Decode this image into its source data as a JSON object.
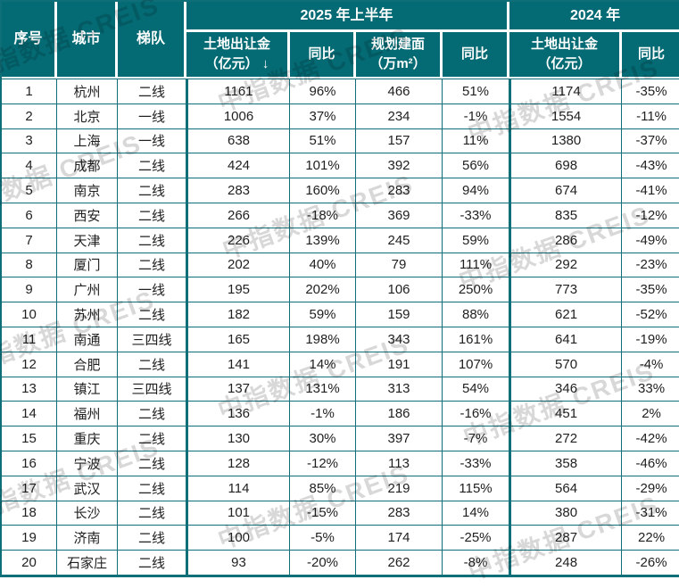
{
  "colors": {
    "header_bg": "#046a73",
    "border": "#0f6f78",
    "body_text": "#212121",
    "header_text": "#ffffff",
    "watermark": "#d8d8d8"
  },
  "watermark_text": "中指数据 CREIS",
  "chart_data": {
    "type": "table",
    "header_groups": {
      "h2025": "2025 年上半年",
      "h2024": "2024 年"
    },
    "columns": {
      "seq": "序号",
      "city": "城市",
      "tier": "梯队",
      "land2025": [
        "土地出让金",
        "（亿元）"
      ],
      "sort_icon": "↓",
      "yoy_land2025": "同比",
      "area2025": [
        "规划建面",
        "（万m²）"
      ],
      "yoy_area2025": "同比",
      "land2024": [
        "土地出让金",
        "（亿元）"
      ],
      "yoy_land2024": "同比"
    },
    "rows": [
      {
        "seq": "1",
        "city": "杭州",
        "tier": "二线",
        "land2025": "1161",
        "yoy_land2025": "96%",
        "area2025": "466",
        "yoy_area2025": "51%",
        "land2024": "1174",
        "yoy_land2024": "-35%"
      },
      {
        "seq": "2",
        "city": "北京",
        "tier": "一线",
        "land2025": "1006",
        "yoy_land2025": "37%",
        "area2025": "234",
        "yoy_area2025": "-1%",
        "land2024": "1554",
        "yoy_land2024": "-11%"
      },
      {
        "seq": "3",
        "city": "上海",
        "tier": "一线",
        "land2025": "638",
        "yoy_land2025": "51%",
        "area2025": "157",
        "yoy_area2025": "11%",
        "land2024": "1380",
        "yoy_land2024": "-37%"
      },
      {
        "seq": "4",
        "city": "成都",
        "tier": "二线",
        "land2025": "424",
        "yoy_land2025": "101%",
        "area2025": "392",
        "yoy_area2025": "56%",
        "land2024": "698",
        "yoy_land2024": "-43%"
      },
      {
        "seq": "5",
        "city": "南京",
        "tier": "二线",
        "land2025": "283",
        "yoy_land2025": "160%",
        "area2025": "283",
        "yoy_area2025": "94%",
        "land2024": "674",
        "yoy_land2024": "-41%"
      },
      {
        "seq": "6",
        "city": "西安",
        "tier": "二线",
        "land2025": "266",
        "yoy_land2025": "-18%",
        "area2025": "369",
        "yoy_area2025": "-33%",
        "land2024": "835",
        "yoy_land2024": "-12%"
      },
      {
        "seq": "7",
        "city": "天津",
        "tier": "二线",
        "land2025": "226",
        "yoy_land2025": "139%",
        "area2025": "245",
        "yoy_area2025": "59%",
        "land2024": "286",
        "yoy_land2024": "-49%"
      },
      {
        "seq": "8",
        "city": "厦门",
        "tier": "二线",
        "land2025": "202",
        "yoy_land2025": "40%",
        "area2025": "79",
        "yoy_area2025": "111%",
        "land2024": "292",
        "yoy_land2024": "-23%"
      },
      {
        "seq": "9",
        "city": "广州",
        "tier": "一线",
        "land2025": "195",
        "yoy_land2025": "202%",
        "area2025": "106",
        "yoy_area2025": "250%",
        "land2024": "773",
        "yoy_land2024": "-35%"
      },
      {
        "seq": "10",
        "city": "苏州",
        "tier": "二线",
        "land2025": "182",
        "yoy_land2025": "59%",
        "area2025": "159",
        "yoy_area2025": "88%",
        "land2024": "621",
        "yoy_land2024": "-52%"
      },
      {
        "seq": "11",
        "city": "南通",
        "tier": "三四线",
        "land2025": "165",
        "yoy_land2025": "198%",
        "area2025": "343",
        "yoy_area2025": "161%",
        "land2024": "641",
        "yoy_land2024": "-19%"
      },
      {
        "seq": "12",
        "city": "合肥",
        "tier": "二线",
        "land2025": "141",
        "yoy_land2025": "14%",
        "area2025": "191",
        "yoy_area2025": "107%",
        "land2024": "570",
        "yoy_land2024": "-4%"
      },
      {
        "seq": "13",
        "city": "镇江",
        "tier": "三四线",
        "land2025": "137",
        "yoy_land2025": "131%",
        "area2025": "313",
        "yoy_area2025": "54%",
        "land2024": "346",
        "yoy_land2024": "33%"
      },
      {
        "seq": "14",
        "city": "福州",
        "tier": "二线",
        "land2025": "136",
        "yoy_land2025": "-1%",
        "area2025": "186",
        "yoy_area2025": "-16%",
        "land2024": "451",
        "yoy_land2024": "2%"
      },
      {
        "seq": "15",
        "city": "重庆",
        "tier": "二线",
        "land2025": "130",
        "yoy_land2025": "30%",
        "area2025": "397",
        "yoy_area2025": "-7%",
        "land2024": "272",
        "yoy_land2024": "-42%"
      },
      {
        "seq": "16",
        "city": "宁波",
        "tier": "二线",
        "land2025": "128",
        "yoy_land2025": "-12%",
        "area2025": "113",
        "yoy_area2025": "-33%",
        "land2024": "358",
        "yoy_land2024": "-46%"
      },
      {
        "seq": "17",
        "city": "武汉",
        "tier": "二线",
        "land2025": "114",
        "yoy_land2025": "85%",
        "area2025": "219",
        "yoy_area2025": "115%",
        "land2024": "564",
        "yoy_land2024": "-29%"
      },
      {
        "seq": "18",
        "city": "长沙",
        "tier": "二线",
        "land2025": "101",
        "yoy_land2025": "-15%",
        "area2025": "283",
        "yoy_area2025": "14%",
        "land2024": "380",
        "yoy_land2024": "-31%"
      },
      {
        "seq": "19",
        "city": "济南",
        "tier": "二线",
        "land2025": "100",
        "yoy_land2025": "-5%",
        "area2025": "174",
        "yoy_area2025": "-25%",
        "land2024": "287",
        "yoy_land2024": "22%"
      },
      {
        "seq": "20",
        "city": "石家庄",
        "tier": "二线",
        "land2025": "93",
        "yoy_land2025": "-20%",
        "area2025": "262",
        "yoy_area2025": "-8%",
        "land2024": "248",
        "yoy_land2024": "-26%"
      }
    ]
  }
}
